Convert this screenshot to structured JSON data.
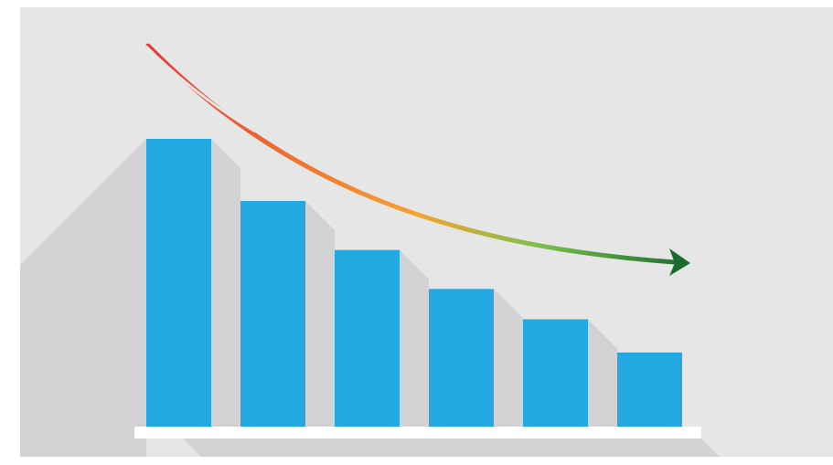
{
  "chart_data": {
    "type": "bar",
    "title": "",
    "xlabel": "",
    "ylabel": "",
    "categories": [
      "",
      "",
      "",
      "",
      "",
      ""
    ],
    "values": [
      100,
      78.5,
      61.5,
      48,
      37.5,
      26
    ],
    "ylim": [
      0,
      100
    ],
    "grid": false,
    "legend": "none",
    "trend_arrow": {
      "direction": "decreasing",
      "gradient_colors": [
        "#e53935",
        "#f4a331",
        "#7cc04a",
        "#1b6a2f"
      ]
    }
  },
  "colors": {
    "background": "#e6e6e6",
    "shadow": "#d2d2d4",
    "bar": "#23a9e1",
    "baseline": "#ffffff",
    "frame": "#ffffff"
  }
}
